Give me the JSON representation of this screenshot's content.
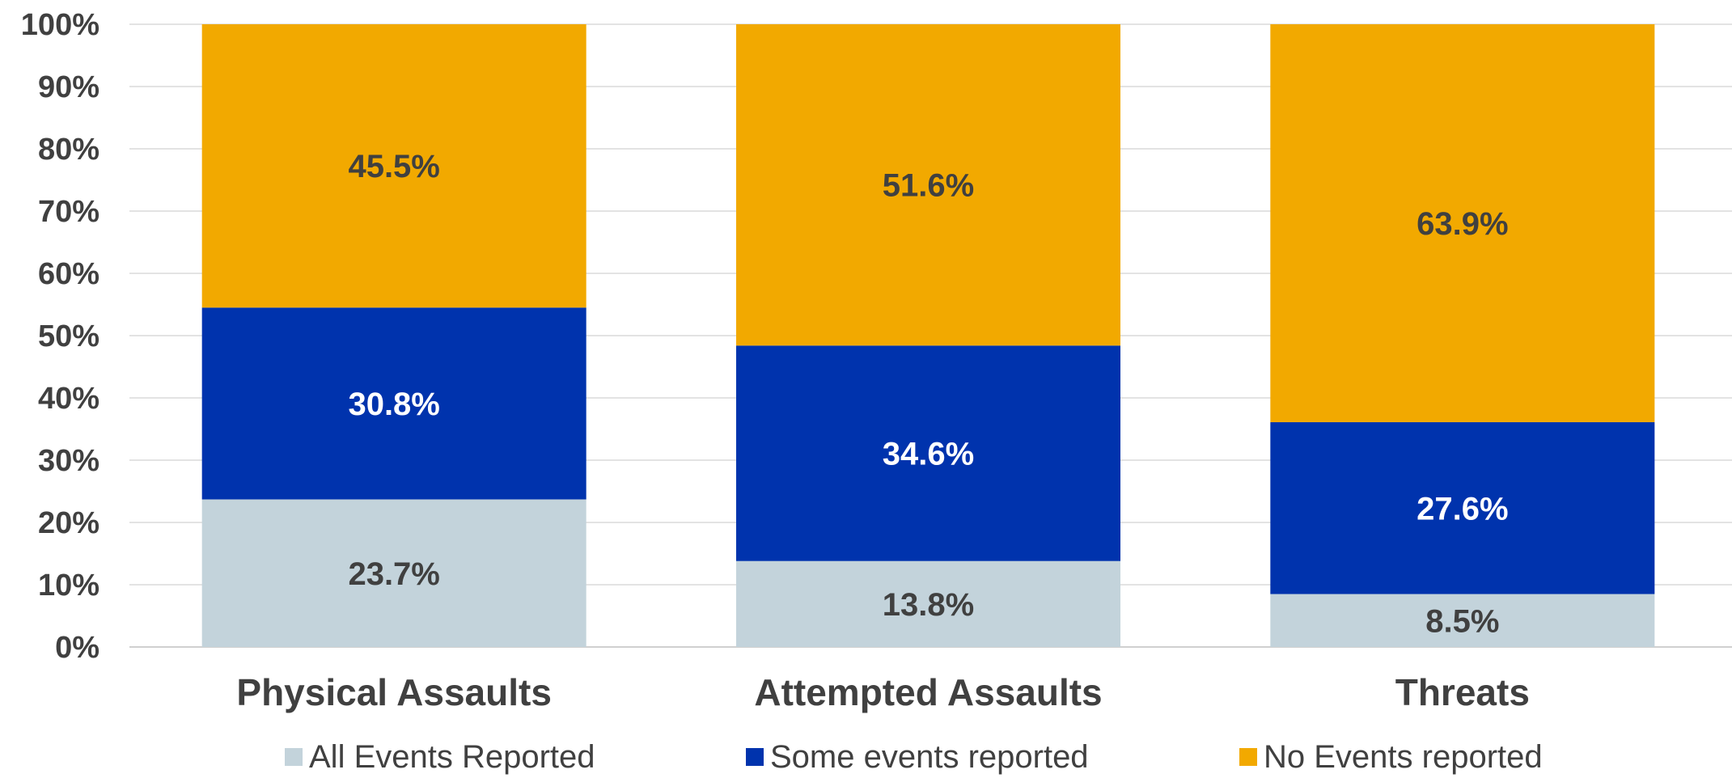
{
  "chart_data": {
    "type": "bar",
    "stacked": true,
    "normalized": true,
    "categories": [
      "Physical Assaults",
      "Attempted Assaults",
      "Threats"
    ],
    "series": [
      {
        "name": "All Events Reported",
        "values": [
          23.7,
          13.8,
          8.5
        ],
        "labels": [
          "23.7%",
          "13.8%",
          "8.5%"
        ],
        "color": "#C3D3DB",
        "label_color": "#404040"
      },
      {
        "name": "Some events reported",
        "values": [
          30.8,
          34.6,
          27.6
        ],
        "labels": [
          "30.8%",
          "34.6%",
          "27.6%"
        ],
        "color": "#0033AD",
        "label_color": "#FFFFFF"
      },
      {
        "name": "No Events reported",
        "values": [
          45.5,
          51.6,
          63.9
        ],
        "labels": [
          "45.5%",
          "51.6%",
          "63.9%"
        ],
        "color": "#F2A900",
        "label_color": "#404040"
      }
    ],
    "ylim": [
      0,
      100
    ],
    "y_ticks": [
      "0%",
      "10%",
      "20%",
      "30%",
      "40%",
      "50%",
      "60%",
      "70%",
      "80%",
      "90%",
      "100%"
    ],
    "grid": true,
    "legend_position": "bottom",
    "title": "",
    "xlabel": "",
    "ylabel": ""
  }
}
